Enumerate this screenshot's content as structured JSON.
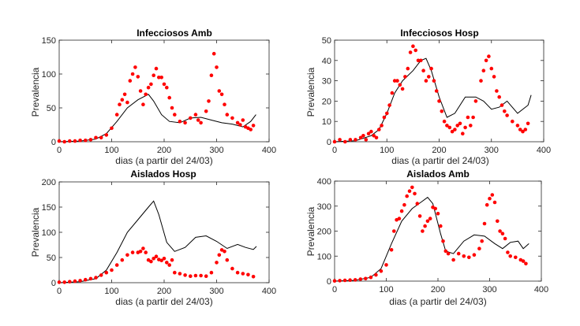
{
  "chart_data": [
    {
      "type": "scatter",
      "title": "Infecciosos Amb",
      "xlabel": "dias (a partir del 24/03)",
      "ylabel": "Prevalencia",
      "xlim": [
        0,
        400
      ],
      "ylim": [
        0,
        150
      ],
      "xticks": [
        "0",
        "100",
        "200",
        "300",
        "400"
      ],
      "yticks": [
        "0",
        "50",
        "100",
        "150"
      ],
      "grid": false,
      "model_line": [
        [
          0,
          0
        ],
        [
          40,
          1
        ],
        [
          70,
          4
        ],
        [
          90,
          12
        ],
        [
          110,
          30
        ],
        [
          130,
          50
        ],
        [
          150,
          62
        ],
        [
          170,
          70
        ],
        [
          180,
          60
        ],
        [
          195,
          40
        ],
        [
          210,
          30
        ],
        [
          230,
          28
        ],
        [
          250,
          35
        ],
        [
          270,
          36
        ],
        [
          290,
          32
        ],
        [
          310,
          28
        ],
        [
          330,
          26
        ],
        [
          350,
          22
        ],
        [
          365,
          30
        ],
        [
          375,
          40
        ]
      ],
      "observed_points": [
        [
          0,
          1
        ],
        [
          10,
          0
        ],
        [
          20,
          1
        ],
        [
          30,
          1
        ],
        [
          40,
          2
        ],
        [
          50,
          2
        ],
        [
          60,
          3
        ],
        [
          70,
          6
        ],
        [
          80,
          6
        ],
        [
          90,
          10
        ],
        [
          100,
          20
        ],
        [
          110,
          40
        ],
        [
          115,
          55
        ],
        [
          120,
          62
        ],
        [
          125,
          70
        ],
        [
          130,
          58
        ],
        [
          135,
          90
        ],
        [
          140,
          100
        ],
        [
          145,
          110
        ],
        [
          150,
          96
        ],
        [
          155,
          75
        ],
        [
          160,
          55
        ],
        [
          165,
          70
        ],
        [
          170,
          80
        ],
        [
          175,
          85
        ],
        [
          180,
          98
        ],
        [
          185,
          108
        ],
        [
          190,
          95
        ],
        [
          195,
          95
        ],
        [
          200,
          85
        ],
        [
          205,
          80
        ],
        [
          210,
          65
        ],
        [
          215,
          50
        ],
        [
          220,
          40
        ],
        [
          230,
          30
        ],
        [
          240,
          28
        ],
        [
          250,
          35
        ],
        [
          260,
          40
        ],
        [
          265,
          32
        ],
        [
          270,
          28
        ],
        [
          280,
          45
        ],
        [
          285,
          60
        ],
        [
          290,
          98
        ],
        [
          295,
          130
        ],
        [
          300,
          110
        ],
        [
          305,
          75
        ],
        [
          310,
          70
        ],
        [
          315,
          55
        ],
        [
          320,
          40
        ],
        [
          330,
          35
        ],
        [
          340,
          28
        ],
        [
          345,
          25
        ],
        [
          350,
          32
        ],
        [
          355,
          22
        ],
        [
          360,
          20
        ],
        [
          365,
          18
        ],
        [
          370,
          24
        ]
      ],
      "colors": {
        "model": "#000000",
        "observed": "#ff0000"
      }
    },
    {
      "type": "scatter",
      "title": "Infecciosos Hosp",
      "xlabel": "dias (a partir del 24/03)",
      "ylabel": "Prevalencia",
      "xlim": [
        0,
        400
      ],
      "ylim": [
        0,
        50
      ],
      "xticks": [
        "0",
        "100",
        "200",
        "300",
        "400"
      ],
      "yticks": [
        "0",
        "10",
        "20",
        "30",
        "40",
        "50"
      ],
      "grid": false,
      "model_line": [
        [
          0,
          0
        ],
        [
          40,
          0.5
        ],
        [
          70,
          3
        ],
        [
          85,
          6
        ],
        [
          100,
          14
        ],
        [
          115,
          24
        ],
        [
          130,
          30
        ],
        [
          150,
          35
        ],
        [
          165,
          40
        ],
        [
          175,
          41
        ],
        [
          185,
          35
        ],
        [
          200,
          22
        ],
        [
          215,
          12
        ],
        [
          230,
          14
        ],
        [
          250,
          22
        ],
        [
          270,
          22
        ],
        [
          285,
          20
        ],
        [
          300,
          16
        ],
        [
          315,
          17
        ],
        [
          330,
          20
        ],
        [
          350,
          14
        ],
        [
          370,
          18
        ],
        [
          376,
          23
        ]
      ],
      "observed_points": [
        [
          0,
          0
        ],
        [
          10,
          1
        ],
        [
          20,
          0
        ],
        [
          30,
          1
        ],
        [
          40,
          1
        ],
        [
          50,
          2
        ],
        [
          55,
          3
        ],
        [
          60,
          1
        ],
        [
          65,
          4
        ],
        [
          70,
          5
        ],
        [
          75,
          3
        ],
        [
          80,
          2
        ],
        [
          85,
          6
        ],
        [
          90,
          8
        ],
        [
          95,
          12
        ],
        [
          100,
          14
        ],
        [
          105,
          18
        ],
        [
          110,
          24
        ],
        [
          115,
          30
        ],
        [
          120,
          30
        ],
        [
          125,
          28
        ],
        [
          130,
          26
        ],
        [
          135,
          32
        ],
        [
          140,
          36
        ],
        [
          145,
          44
        ],
        [
          150,
          47
        ],
        [
          155,
          45
        ],
        [
          160,
          40
        ],
        [
          165,
          40
        ],
        [
          170,
          35
        ],
        [
          175,
          30
        ],
        [
          180,
          32
        ],
        [
          185,
          36
        ],
        [
          190,
          30
        ],
        [
          195,
          25
        ],
        [
          200,
          20
        ],
        [
          205,
          15
        ],
        [
          210,
          10
        ],
        [
          215,
          8
        ],
        [
          220,
          7
        ],
        [
          225,
          5
        ],
        [
          230,
          6
        ],
        [
          235,
          8
        ],
        [
          240,
          9
        ],
        [
          245,
          4
        ],
        [
          250,
          7
        ],
        [
          255,
          12
        ],
        [
          260,
          8
        ],
        [
          265,
          12
        ],
        [
          270,
          20
        ],
        [
          280,
          30
        ],
        [
          285,
          35
        ],
        [
          290,
          40
        ],
        [
          295,
          42
        ],
        [
          300,
          36
        ],
        [
          305,
          32
        ],
        [
          310,
          25
        ],
        [
          315,
          22
        ],
        [
          320,
          18
        ],
        [
          325,
          15
        ],
        [
          330,
          13
        ],
        [
          340,
          10
        ],
        [
          350,
          8
        ],
        [
          355,
          6
        ],
        [
          360,
          5
        ],
        [
          365,
          6
        ],
        [
          370,
          9
        ]
      ],
      "colors": {
        "model": "#000000",
        "observed": "#ff0000"
      }
    },
    {
      "type": "scatter",
      "title": "Aislados Hosp",
      "xlabel": "dias (a partir del 24/03)",
      "ylabel": "Prevalencia",
      "xlim": [
        0,
        400
      ],
      "ylim": [
        0,
        200
      ],
      "xticks": [
        "0",
        "100",
        "200",
        "300",
        "400"
      ],
      "yticks": [
        "0",
        "50",
        "100",
        "150",
        "200"
      ],
      "grid": false,
      "model_line": [
        [
          0,
          0
        ],
        [
          40,
          2
        ],
        [
          70,
          8
        ],
        [
          90,
          25
        ],
        [
          110,
          60
        ],
        [
          130,
          100
        ],
        [
          150,
          125
        ],
        [
          170,
          150
        ],
        [
          180,
          162
        ],
        [
          190,
          135
        ],
        [
          205,
          80
        ],
        [
          220,
          62
        ],
        [
          240,
          70
        ],
        [
          260,
          90
        ],
        [
          280,
          93
        ],
        [
          300,
          82
        ],
        [
          320,
          68
        ],
        [
          340,
          76
        ],
        [
          355,
          70
        ],
        [
          370,
          66
        ],
        [
          376,
          72
        ]
      ],
      "observed_points": [
        [
          0,
          1
        ],
        [
          10,
          1
        ],
        [
          20,
          2
        ],
        [
          30,
          3
        ],
        [
          40,
          4
        ],
        [
          50,
          6
        ],
        [
          60,
          8
        ],
        [
          70,
          10
        ],
        [
          80,
          15
        ],
        [
          90,
          20
        ],
        [
          100,
          25
        ],
        [
          110,
          35
        ],
        [
          120,
          45
        ],
        [
          130,
          55
        ],
        [
          140,
          60
        ],
        [
          150,
          60
        ],
        [
          155,
          62
        ],
        [
          160,
          68
        ],
        [
          165,
          60
        ],
        [
          170,
          45
        ],
        [
          175,
          42
        ],
        [
          180,
          48
        ],
        [
          185,
          52
        ],
        [
          190,
          46
        ],
        [
          195,
          44
        ],
        [
          200,
          48
        ],
        [
          205,
          40
        ],
        [
          210,
          35
        ],
        [
          215,
          45
        ],
        [
          220,
          20
        ],
        [
          230,
          18
        ],
        [
          240,
          15
        ],
        [
          250,
          13
        ],
        [
          260,
          14
        ],
        [
          270,
          14
        ],
        [
          280,
          13
        ],
        [
          290,
          20
        ],
        [
          300,
          40
        ],
        [
          305,
          55
        ],
        [
          310,
          65
        ],
        [
          315,
          62
        ],
        [
          320,
          45
        ],
        [
          330,
          28
        ],
        [
          340,
          20
        ],
        [
          350,
          18
        ],
        [
          360,
          16
        ],
        [
          370,
          12
        ]
      ],
      "colors": {
        "model": "#000000",
        "observed": "#ff0000"
      }
    },
    {
      "type": "scatter",
      "title": "Aislados Amb",
      "xlabel": "dias (a partir del 24/03)",
      "ylabel": "Prevalencia",
      "xlim": [
        0,
        400
      ],
      "ylim": [
        0,
        400
      ],
      "xticks": [
        "0",
        "100",
        "200",
        "300",
        "400"
      ],
      "yticks": [
        "0",
        "100",
        "200",
        "300",
        "400"
      ],
      "grid": false,
      "model_line": [
        [
          0,
          0
        ],
        [
          40,
          3
        ],
        [
          70,
          15
        ],
        [
          90,
          50
        ],
        [
          110,
          150
        ],
        [
          130,
          240
        ],
        [
          150,
          290
        ],
        [
          170,
          320
        ],
        [
          180,
          335
        ],
        [
          190,
          310
        ],
        [
          205,
          190
        ],
        [
          215,
          120
        ],
        [
          230,
          110
        ],
        [
          250,
          160
        ],
        [
          270,
          185
        ],
        [
          290,
          180
        ],
        [
          310,
          150
        ],
        [
          325,
          130
        ],
        [
          340,
          155
        ],
        [
          355,
          160
        ],
        [
          365,
          130
        ],
        [
          376,
          150
        ]
      ],
      "observed_points": [
        [
          0,
          1
        ],
        [
          10,
          2
        ],
        [
          20,
          3
        ],
        [
          30,
          4
        ],
        [
          40,
          5
        ],
        [
          50,
          8
        ],
        [
          60,
          10
        ],
        [
          70,
          15
        ],
        [
          80,
          25
        ],
        [
          90,
          40
        ],
        [
          100,
          65
        ],
        [
          110,
          125
        ],
        [
          115,
          200
        ],
        [
          120,
          245
        ],
        [
          125,
          250
        ],
        [
          130,
          280
        ],
        [
          135,
          305
        ],
        [
          140,
          340
        ],
        [
          145,
          360
        ],
        [
          150,
          375
        ],
        [
          155,
          350
        ],
        [
          160,
          310
        ],
        [
          165,
          260
        ],
        [
          170,
          200
        ],
        [
          175,
          220
        ],
        [
          180,
          240
        ],
        [
          185,
          250
        ],
        [
          190,
          295
        ],
        [
          195,
          290
        ],
        [
          200,
          270
        ],
        [
          205,
          220
        ],
        [
          210,
          160
        ],
        [
          215,
          120
        ],
        [
          220,
          110
        ],
        [
          230,
          85
        ],
        [
          240,
          110
        ],
        [
          250,
          100
        ],
        [
          260,
          95
        ],
        [
          270,
          105
        ],
        [
          280,
          130
        ],
        [
          285,
          160
        ],
        [
          290,
          230
        ],
        [
          295,
          305
        ],
        [
          300,
          330
        ],
        [
          305,
          345
        ],
        [
          310,
          315
        ],
        [
          315,
          240
        ],
        [
          320,
          200
        ],
        [
          325,
          190
        ],
        [
          330,
          170
        ],
        [
          335,
          115
        ],
        [
          340,
          100
        ],
        [
          350,
          95
        ],
        [
          360,
          85
        ],
        [
          365,
          80
        ],
        [
          370,
          70
        ]
      ],
      "colors": {
        "model": "#000000",
        "observed": "#ff0000"
      }
    }
  ]
}
